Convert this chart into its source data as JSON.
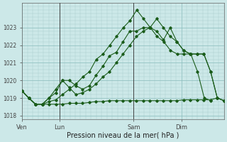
{
  "xlabel": "Pression niveau de la mer( hPa )",
  "bg_color": "#cce8e8",
  "grid_major_color": "#88bbbb",
  "grid_minor_color": "#aacccc",
  "line_color": "#1a5c1a",
  "ylim": [
    1017.8,
    1024.4
  ],
  "yticks": [
    1018,
    1019,
    1020,
    1021,
    1022,
    1023
  ],
  "xtick_labels": [
    "Ven",
    "Lun",
    "Sam",
    "Dim"
  ],
  "xtick_positions": [
    0,
    7,
    21,
    30
  ],
  "vlines": [
    0,
    7,
    21,
    30
  ],
  "xlim": [
    0,
    38
  ],
  "series": [
    [
      1019.4,
      1019.0,
      1018.65,
      1018.65,
      1019.0,
      1019.3,
      1020.0,
      1020.0,
      1019.7,
      1019.5,
      1019.7,
      1020.3,
      1020.8,
      1021.4,
      1021.6,
      1022.2,
      1022.8,
      1022.8,
      1023.0,
      1023.0,
      1023.5,
      1023.0,
      1022.5,
      1022.2,
      1021.7,
      1021.5,
      1021.5,
      1021.5,
      1020.5,
      1019.0,
      1018.85
    ],
    [
      1019.4,
      1019.0,
      1018.65,
      1018.65,
      1018.8,
      1018.9,
      1019.2,
      1019.5,
      1019.8,
      1020.2,
      1020.5,
      1021.2,
      1021.5,
      1022.0,
      1022.5,
      1023.0,
      1023.4,
      1024.0,
      1023.5,
      1023.0,
      1022.5,
      1022.2,
      1021.7,
      1021.5,
      1021.5,
      1021.5,
      1020.5,
      1019.0,
      1018.85
    ],
    [
      1019.4,
      1019.0,
      1018.65,
      1018.65,
      1018.65,
      1018.65,
      1018.65,
      1018.7,
      1018.7,
      1018.7,
      1018.75,
      1018.8,
      1018.8,
      1018.85,
      1018.85,
      1018.85,
      1018.85,
      1018.85,
      1018.85,
      1018.85,
      1018.85,
      1018.85,
      1018.85,
      1018.85,
      1018.9,
      1018.9,
      1018.9,
      1018.9,
      1018.9,
      1019.0,
      1018.85
    ],
    [
      1019.4,
      1019.0,
      1018.65,
      1018.65,
      1019.0,
      1019.5,
      1020.0,
      1019.6,
      1019.2,
      1019.3,
      1019.5,
      1019.8,
      1020.2,
      1020.5,
      1021.0,
      1021.5,
      1022.0,
      1022.5,
      1022.8,
      1023.0,
      1022.8,
      1022.3,
      1023.0,
      1022.2,
      1021.7,
      1021.5,
      1021.5,
      1021.5,
      1020.5,
      1019.0,
      1018.85
    ]
  ]
}
